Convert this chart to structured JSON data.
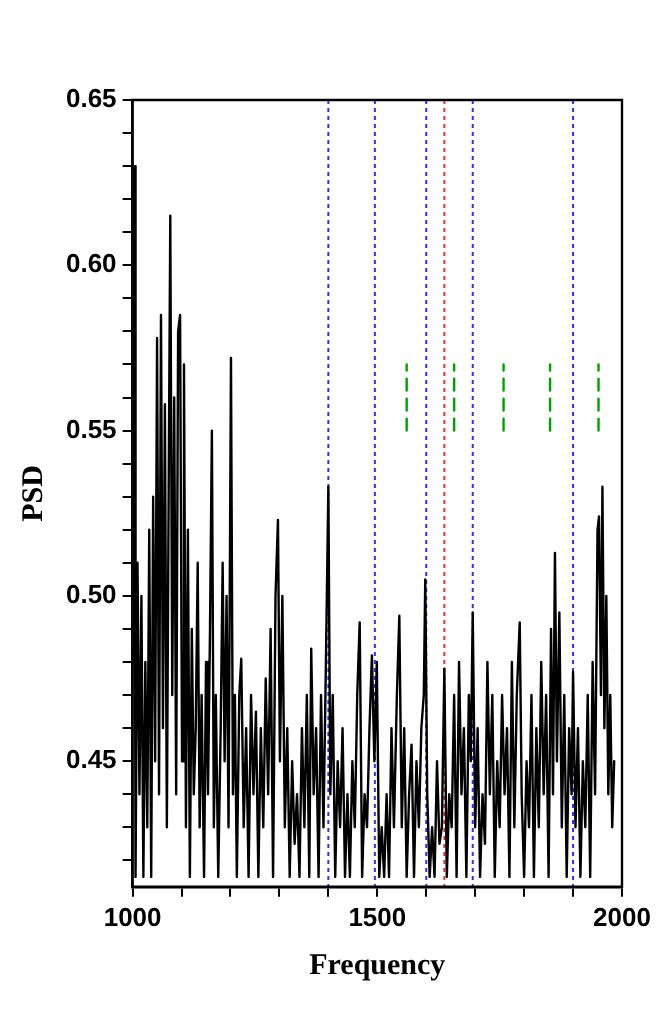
{
  "chart_data": {
    "type": "line",
    "xlabel": "Frequency",
    "ylabel": "PSD",
    "xlim": [
      1000,
      2000
    ],
    "ylim": [
      0.412,
      0.65
    ],
    "xticks": [
      1000,
      {
        "value": 1100,
        "label": null
      },
      {
        "value": 1200,
        "label": null
      },
      {
        "value": 1300,
        "label": null
      },
      {
        "value": 1400,
        "label": null
      },
      1500,
      {
        "value": 1600,
        "label": null
      },
      {
        "value": 1700,
        "label": null
      },
      {
        "value": 1800,
        "label": null
      },
      {
        "value": 1900,
        "label": null
      },
      2000
    ],
    "yticks": [
      {
        "value": 0.42,
        "label": null
      },
      {
        "value": 0.43,
        "label": null
      },
      {
        "value": 0.44,
        "label": null
      },
      0.45,
      {
        "value": 0.46,
        "label": null
      },
      {
        "value": 0.47,
        "label": null
      },
      {
        "value": 0.48,
        "label": null
      },
      {
        "value": 0.49,
        "label": null
      },
      {
        "value": 0.5,
        "label": "0.50"
      },
      {
        "value": 0.51,
        "label": null
      },
      {
        "value": 0.52,
        "label": null
      },
      {
        "value": 0.53,
        "label": null
      },
      {
        "value": 0.54,
        "label": null
      },
      0.55,
      {
        "value": 0.56,
        "label": null
      },
      {
        "value": 0.57,
        "label": null
      },
      {
        "value": 0.58,
        "label": null
      },
      {
        "value": 0.59,
        "label": null
      },
      {
        "value": 0.6,
        "label": "0.60"
      },
      {
        "value": 0.61,
        "label": null
      },
      {
        "value": 0.62,
        "label": null
      },
      {
        "value": 0.63,
        "label": null
      },
      {
        "value": 0.64,
        "label": null
      },
      0.65
    ],
    "grid": false,
    "legend": false,
    "marker": "none",
    "ref_lines": [
      {
        "axis": "x",
        "value": 1400,
        "color": "#3030f0",
        "line_style": "dotted"
      },
      {
        "axis": "x",
        "value": 1495,
        "color": "#3030f0",
        "line_style": "dotted"
      },
      {
        "axis": "x",
        "value": 1600,
        "color": "#3030f0",
        "line_style": "dotted"
      },
      {
        "axis": "x",
        "value": 1637,
        "color": "#f03030",
        "line_style": "dotted"
      },
      {
        "axis": "x",
        "value": 1695,
        "color": "#3030f0",
        "line_style": "dotted"
      },
      {
        "axis": "x",
        "value": 1900,
        "color": "#3030f0",
        "line_style": "dotted"
      }
    ],
    "series": [
      {
        "color": "#000000",
        "line_style": "solid",
        "x": [
          1000,
          1003,
          1006,
          1010,
          1014,
          1018,
          1022,
          1026,
          1030,
          1034,
          1038,
          1042,
          1046,
          1050,
          1054,
          1058,
          1062,
          1066,
          1070,
          1074,
          1077,
          1081,
          1085,
          1089,
          1093,
          1097,
          1101,
          1105,
          1109,
          1113,
          1117,
          1121,
          1125,
          1129,
          1133,
          1137,
          1141,
          1146,
          1150,
          1154,
          1158,
          1162,
          1166,
          1170,
          1175,
          1180,
          1184,
          1188,
          1192,
          1196,
          1201,
          1205,
          1209,
          1213,
          1218,
          1222,
          1227,
          1232,
          1237,
          1242,
          1247,
          1252,
          1257,
          1262,
          1267,
          1272,
          1277,
          1282,
          1287,
          1292,
          1297,
          1301,
          1306,
          1311,
          1316,
          1321,
          1326,
          1331,
          1336,
          1341,
          1346,
          1351,
          1356,
          1361,
          1365,
          1370,
          1375,
          1380,
          1385,
          1390,
          1395,
          1400,
          1404,
          1409,
          1414,
          1419,
          1424,
          1429,
          1434,
          1439,
          1444,
          1449,
          1454,
          1459,
          1464,
          1469,
          1474,
          1479,
          1484,
          1489,
          1494,
          1499,
          1504,
          1509,
          1514,
          1519,
          1524,
          1529,
          1534,
          1540,
          1545,
          1550,
          1555,
          1560,
          1565,
          1570,
          1575,
          1580,
          1585,
          1590,
          1595,
          1598,
          1602,
          1607,
          1612,
          1617,
          1622,
          1627,
          1632,
          1637,
          1642,
          1647,
          1652,
          1657,
          1662,
          1667,
          1672,
          1677,
          1682,
          1687,
          1691,
          1695,
          1700,
          1705,
          1710,
          1715,
          1720,
          1725,
          1730,
          1735,
          1740,
          1745,
          1750,
          1755,
          1760,
          1765,
          1770,
          1775,
          1780,
          1785,
          1791,
          1795,
          1800,
          1805,
          1810,
          1815,
          1820,
          1825,
          1830,
          1835,
          1840,
          1845,
          1850,
          1855,
          1859,
          1863,
          1867,
          1872,
          1877,
          1882,
          1887,
          1892,
          1897,
          1900,
          1905,
          1910,
          1915,
          1920,
          1925,
          1930,
          1935,
          1940,
          1945,
          1950,
          1953,
          1957,
          1960,
          1964,
          1968,
          1972,
          1976,
          1980,
          1984
        ],
        "values": [
          0.48,
          0.63,
          0.415,
          0.51,
          0.44,
          0.5,
          0.415,
          0.48,
          0.43,
          0.52,
          0.415,
          0.53,
          0.45,
          0.578,
          0.44,
          0.585,
          0.46,
          0.558,
          0.43,
          0.54,
          0.615,
          0.47,
          0.56,
          0.44,
          0.58,
          0.585,
          0.45,
          0.57,
          0.43,
          0.52,
          0.415,
          0.49,
          0.44,
          0.46,
          0.51,
          0.43,
          0.47,
          0.415,
          0.48,
          0.44,
          0.488,
          0.55,
          0.43,
          0.47,
          0.415,
          0.46,
          0.51,
          0.45,
          0.5,
          0.43,
          0.572,
          0.44,
          0.47,
          0.415,
          0.47,
          0.481,
          0.43,
          0.46,
          0.415,
          0.47,
          0.44,
          0.465,
          0.415,
          0.46,
          0.43,
          0.475,
          0.44,
          0.49,
          0.415,
          0.5,
          0.523,
          0.45,
          0.5,
          0.43,
          0.46,
          0.415,
          0.45,
          0.425,
          0.44,
          0.415,
          0.46,
          0.43,
          0.47,
          0.415,
          0.484,
          0.44,
          0.46,
          0.415,
          0.47,
          0.43,
          0.48,
          0.533,
          0.44,
          0.47,
          0.415,
          0.45,
          0.43,
          0.46,
          0.415,
          0.44,
          0.415,
          0.45,
          0.43,
          0.47,
          0.492,
          0.415,
          0.44,
          0.43,
          0.46,
          0.482,
          0.45,
          0.48,
          0.415,
          0.43,
          0.415,
          0.44,
          0.415,
          0.46,
          0.43,
          0.47,
          0.494,
          0.43,
          0.46,
          0.415,
          0.44,
          0.455,
          0.415,
          0.45,
          0.43,
          0.46,
          0.47,
          0.505,
          0.44,
          0.415,
          0.43,
          0.415,
          0.45,
          0.425,
          0.43,
          0.478,
          0.415,
          0.44,
          0.43,
          0.47,
          0.415,
          0.48,
          0.44,
          0.46,
          0.415,
          0.47,
          0.45,
          0.495,
          0.43,
          0.46,
          0.415,
          0.44,
          0.425,
          0.48,
          0.44,
          0.47,
          0.415,
          0.45,
          0.43,
          0.47,
          0.44,
          0.46,
          0.415,
          0.48,
          0.43,
          0.47,
          0.492,
          0.44,
          0.415,
          0.45,
          0.43,
          0.47,
          0.415,
          0.46,
          0.43,
          0.48,
          0.44,
          0.47,
          0.415,
          0.49,
          0.44,
          0.513,
          0.45,
          0.495,
          0.43,
          0.47,
          0.415,
          0.46,
          0.44,
          0.477,
          0.43,
          0.46,
          0.415,
          0.45,
          0.43,
          0.47,
          0.415,
          0.48,
          0.44,
          0.52,
          0.524,
          0.47,
          0.533,
          0.46,
          0.5,
          0.44,
          0.47,
          0.43,
          0.45
        ]
      },
      {
        "color": "#00a000",
        "line_style": "dashed",
        "x": [
          1560,
          1560
        ],
        "values": [
          0.55,
          0.57
        ]
      },
      {
        "color": "#00a000",
        "line_style": "dashed",
        "x": [
          1657,
          1657
        ],
        "values": [
          0.55,
          0.57
        ]
      },
      {
        "color": "#00a000",
        "line_style": "dashed",
        "x": [
          1758,
          1758
        ],
        "values": [
          0.55,
          0.57
        ]
      },
      {
        "color": "#00a000",
        "line_style": "dashed",
        "x": [
          1853,
          1853
        ],
        "values": [
          0.55,
          0.57
        ]
      },
      {
        "color": "#00a000",
        "line_style": "dashed",
        "x": [
          1952,
          1952
        ],
        "values": [
          0.55,
          0.57
        ]
      }
    ]
  }
}
